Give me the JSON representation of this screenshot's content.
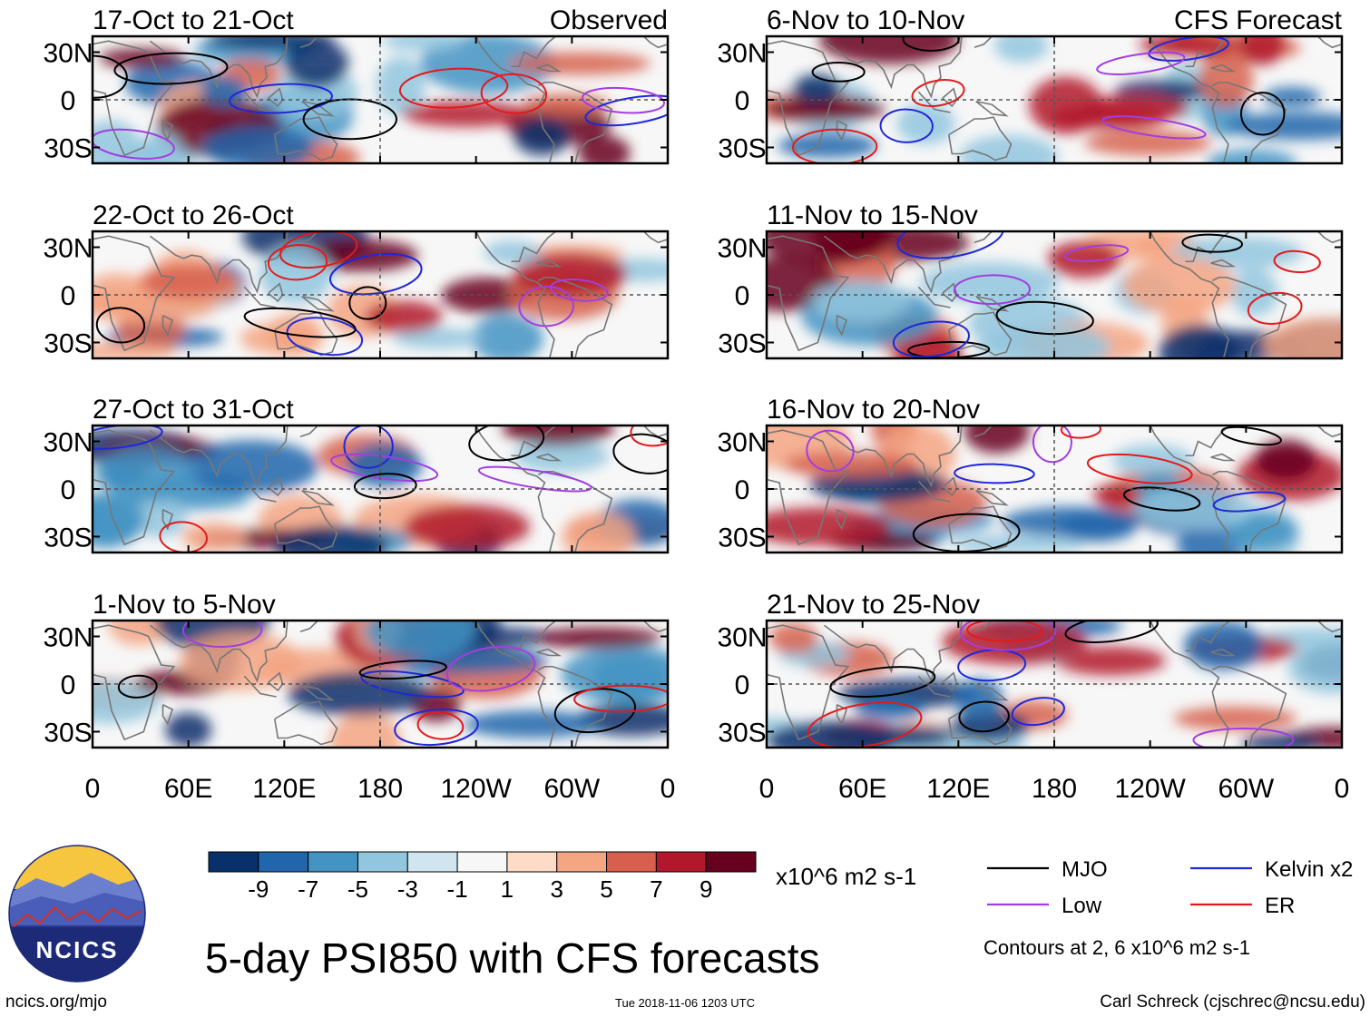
{
  "figure": {
    "main_title": "5-day PSI850 with CFS forecasts",
    "observed_label": "Observed",
    "forecast_label": "CFS Forecast",
    "units": "x10^6 m2 s-1",
    "contour_note": "Contours at 2, 6 x10^6 m2 s-1",
    "url": "ncics.org/mjo",
    "timestamp": "Tue 2018-11-06 1203 UTC",
    "credit": "Carl Schreck (cjschrec@ncsu.edu)",
    "logo_text": "NCICS"
  },
  "panels": {
    "observed": [
      {
        "title": "17-Oct to 21-Oct"
      },
      {
        "title": "22-Oct to 26-Oct"
      },
      {
        "title": "27-Oct to 31-Oct"
      },
      {
        "title": "1-Nov to 5-Nov"
      }
    ],
    "forecast": [
      {
        "title": "6-Nov to 10-Nov"
      },
      {
        "title": "11-Nov to 15-Nov"
      },
      {
        "title": "16-Nov to 20-Nov"
      },
      {
        "title": "21-Nov to 25-Nov"
      }
    ]
  },
  "axes": {
    "lat_labels": [
      "30N",
      "0",
      "30S"
    ],
    "lon_labels": [
      "0",
      "60E",
      "120E",
      "180",
      "120W",
      "60W",
      "0"
    ]
  },
  "colorbar": {
    "tick_labels": [
      "-9",
      "-7",
      "-5",
      "-3",
      "-1",
      "1",
      "3",
      "5",
      "7",
      "9"
    ],
    "colors": [
      "#08306b",
      "#2166ac",
      "#4393c3",
      "#92c5de",
      "#d1e5f0",
      "#f7f7f7",
      "#fddbc7",
      "#f4a582",
      "#d6604d",
      "#b2182b",
      "#67001f"
    ]
  },
  "legend": {
    "items": [
      {
        "label": "MJO",
        "color": "#000000"
      },
      {
        "label": "Kelvin x2",
        "color": "#1f28d8"
      },
      {
        "label": "Low",
        "color": "#a23ee0"
      },
      {
        "label": "ER",
        "color": "#e31a1c"
      }
    ]
  },
  "colors": {
    "coast": "#777777",
    "zero_line": "#555555"
  }
}
